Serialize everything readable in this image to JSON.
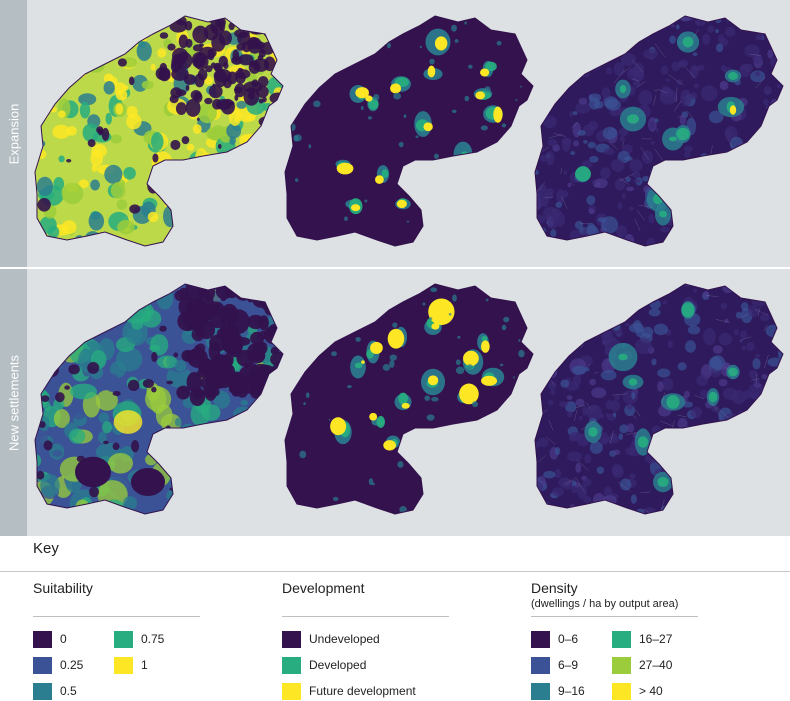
{
  "rows": [
    {
      "label": "Expansion"
    },
    {
      "label": "New settlements"
    }
  ],
  "key_title": "Key",
  "legends": {
    "suitability": {
      "title": "Suitability",
      "items": [
        {
          "label": "0",
          "color": "#33124d"
        },
        {
          "label": "0.25",
          "color": "#3b5396"
        },
        {
          "label": "0.5",
          "color": "#2a7e8f"
        },
        {
          "label": "0.75",
          "color": "#27ad7f"
        },
        {
          "label": "1",
          "color": "#fde725"
        }
      ]
    },
    "development": {
      "title": "Development",
      "items": [
        {
          "label": "Undeveloped",
          "color": "#33124d"
        },
        {
          "label": "Developed",
          "color": "#27ad7f"
        },
        {
          "label": "Future development",
          "color": "#fde725"
        }
      ]
    },
    "density": {
      "title": "Density",
      "subtitle": "(dwellings / ha by output area)",
      "items": [
        {
          "label": "0–6",
          "color": "#33124d"
        },
        {
          "label": "6–9",
          "color": "#3b5396"
        },
        {
          "label": "9–16",
          "color": "#2a7e8f"
        },
        {
          "label": "16–27",
          "color": "#27ad7f"
        },
        {
          "label": "27–40",
          "color": "#9bcc3b"
        },
        {
          "label": "> 40",
          "color": "#fde725"
        }
      ]
    }
  }
}
